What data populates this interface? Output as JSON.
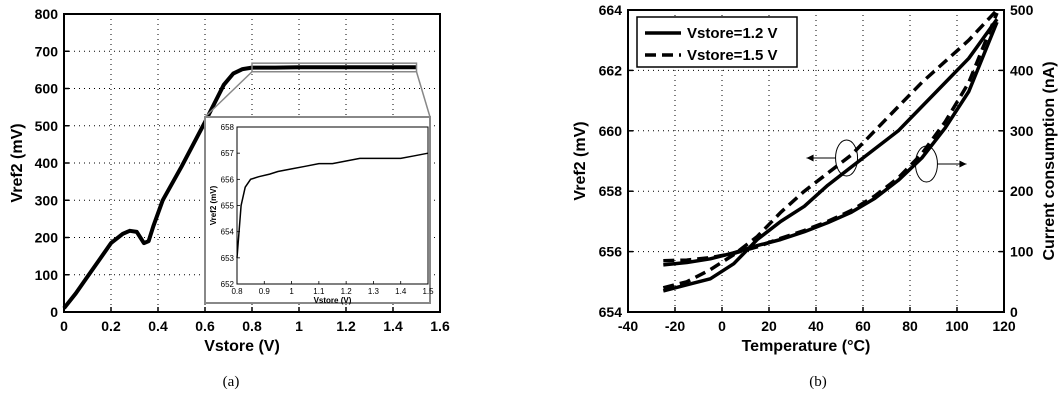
{
  "chart_data": [
    {
      "type": "line",
      "panel": "(a)",
      "xlabel": "Vstore (V)",
      "ylabel": "Vref2 (mV)",
      "xlim": [
        0,
        1.6
      ],
      "ylim": [
        0,
        800
      ],
      "xticks": [
        0,
        0.2,
        0.4,
        0.6,
        0.8,
        1,
        1.2,
        1.4,
        1.6
      ],
      "xtick_labels": [
        "0",
        "0.2",
        "0.4",
        "0.6",
        "0.8",
        "1",
        "1.2",
        "1.4",
        "1.6"
      ],
      "yticks": [
        0,
        100,
        200,
        300,
        400,
        500,
        600,
        700,
        800
      ],
      "ytick_labels": [
        "0",
        "100",
        "200",
        "300",
        "400",
        "500",
        "600",
        "700",
        "800"
      ],
      "grid": true,
      "series": [
        {
          "x": [
            0,
            0.05,
            0.1,
            0.15,
            0.2,
            0.25,
            0.28,
            0.31,
            0.34,
            0.36,
            0.38,
            0.42,
            0.5,
            0.6,
            0.68,
            0.72,
            0.76,
            0.8,
            0.85,
            0.9,
            1.0,
            1.2,
            1.4,
            1.5
          ],
          "y": [
            10,
            50,
            95,
            140,
            185,
            210,
            218,
            215,
            185,
            190,
            230,
            300,
            390,
            510,
            610,
            640,
            652,
            656,
            656,
            656,
            657,
            657,
            657,
            657
          ]
        }
      ],
      "zoom_region": {
        "x": [
          0.8,
          1.5
        ],
        "y": [
          645,
          668
        ]
      },
      "inset": {
        "xlabel": "Vstore (V)",
        "ylabel": "Vref2 (mV)",
        "xlim": [
          0.8,
          1.5
        ],
        "ylim": [
          652,
          658
        ],
        "xticks": [
          0.8,
          0.9,
          1,
          1.1,
          1.2,
          1.3,
          1.4,
          1.5
        ],
        "xtick_labels": [
          "0.8",
          "0.9",
          "1",
          "1.1",
          "1.2",
          "1.3",
          "1.4",
          "1.5"
        ],
        "yticks": [
          652,
          653,
          654,
          655,
          656,
          657,
          658
        ],
        "ytick_labels": [
          "652",
          "653",
          "654",
          "655",
          "656",
          "657",
          "658"
        ],
        "x": [
          0.8,
          0.815,
          0.83,
          0.85,
          0.88,
          0.92,
          0.95,
          1.0,
          1.05,
          1.1,
          1.15,
          1.2,
          1.25,
          1.3,
          1.35,
          1.4,
          1.45,
          1.5
        ],
        "y": [
          653.0,
          655.0,
          655.7,
          656.0,
          656.1,
          656.2,
          656.3,
          656.4,
          656.5,
          656.6,
          656.6,
          656.7,
          656.8,
          656.8,
          656.8,
          656.8,
          656.9,
          657.0
        ]
      }
    },
    {
      "type": "line",
      "panel": "(b)",
      "xlabel": "Temperature (°C)",
      "ylabel": "Vref2 (mV)",
      "y2label": "Current consumption (nA)",
      "xlim": [
        -40,
        120
      ],
      "ylim": [
        654,
        664
      ],
      "y2lim": [
        0,
        500
      ],
      "xticks": [
        -40,
        -20,
        0,
        20,
        40,
        60,
        80,
        100,
        120
      ],
      "xtick_labels": [
        "-40",
        "-20",
        "0",
        "20",
        "40",
        "60",
        "80",
        "100",
        "120"
      ],
      "yticks": [
        654,
        656,
        658,
        660,
        662,
        664
      ],
      "ytick_labels": [
        "654",
        "656",
        "658",
        "660",
        "662",
        "664"
      ],
      "y2ticks": [
        0,
        100,
        200,
        300,
        400,
        500
      ],
      "y2tick_labels": [
        "0",
        "100",
        "200",
        "300",
        "400",
        "500"
      ],
      "grid": true,
      "legend_position": "top-left",
      "series": [
        {
          "name": "Vstore=1.2 V",
          "style": "solid",
          "axis": "left",
          "x": [
            -25,
            -15,
            -5,
            5,
            15,
            25,
            35,
            45,
            55,
            65,
            75,
            85,
            95,
            105,
            117
          ],
          "y": [
            654.7,
            654.9,
            655.1,
            655.6,
            656.4,
            657.0,
            657.5,
            658.2,
            658.8,
            659.4,
            660.0,
            660.8,
            661.6,
            662.4,
            663.7
          ]
        },
        {
          "name": "Vstore=1.5 V",
          "style": "dashed",
          "axis": "left",
          "x": [
            -25,
            -15,
            -5,
            5,
            15,
            25,
            35,
            45,
            55,
            65,
            75,
            85,
            95,
            105,
            117
          ],
          "y": [
            654.8,
            655.0,
            655.4,
            655.9,
            656.5,
            657.3,
            658.0,
            658.6,
            659.2,
            660.0,
            660.8,
            661.6,
            662.3,
            663.0,
            664.0
          ]
        },
        {
          "name": "Vstore=1.2 V",
          "style": "solid",
          "axis": "right",
          "x": [
            -25,
            -15,
            -5,
            5,
            15,
            25,
            35,
            45,
            55,
            65,
            75,
            85,
            95,
            105,
            117
          ],
          "y": [
            78,
            82,
            88,
            98,
            110,
            120,
            133,
            148,
            165,
            188,
            218,
            255,
            305,
            365,
            480
          ]
        },
        {
          "name": "Vstore=1.5 V",
          "style": "dashed",
          "axis": "right",
          "x": [
            -25,
            -15,
            -5,
            5,
            15,
            25,
            35,
            45,
            55,
            65,
            75,
            85,
            95,
            105,
            117
          ],
          "y": [
            85,
            86,
            90,
            97,
            108,
            122,
            135,
            150,
            168,
            192,
            222,
            262,
            315,
            380,
            495
          ]
        }
      ]
    }
  ],
  "captions": [
    "(a)",
    "(b)"
  ]
}
